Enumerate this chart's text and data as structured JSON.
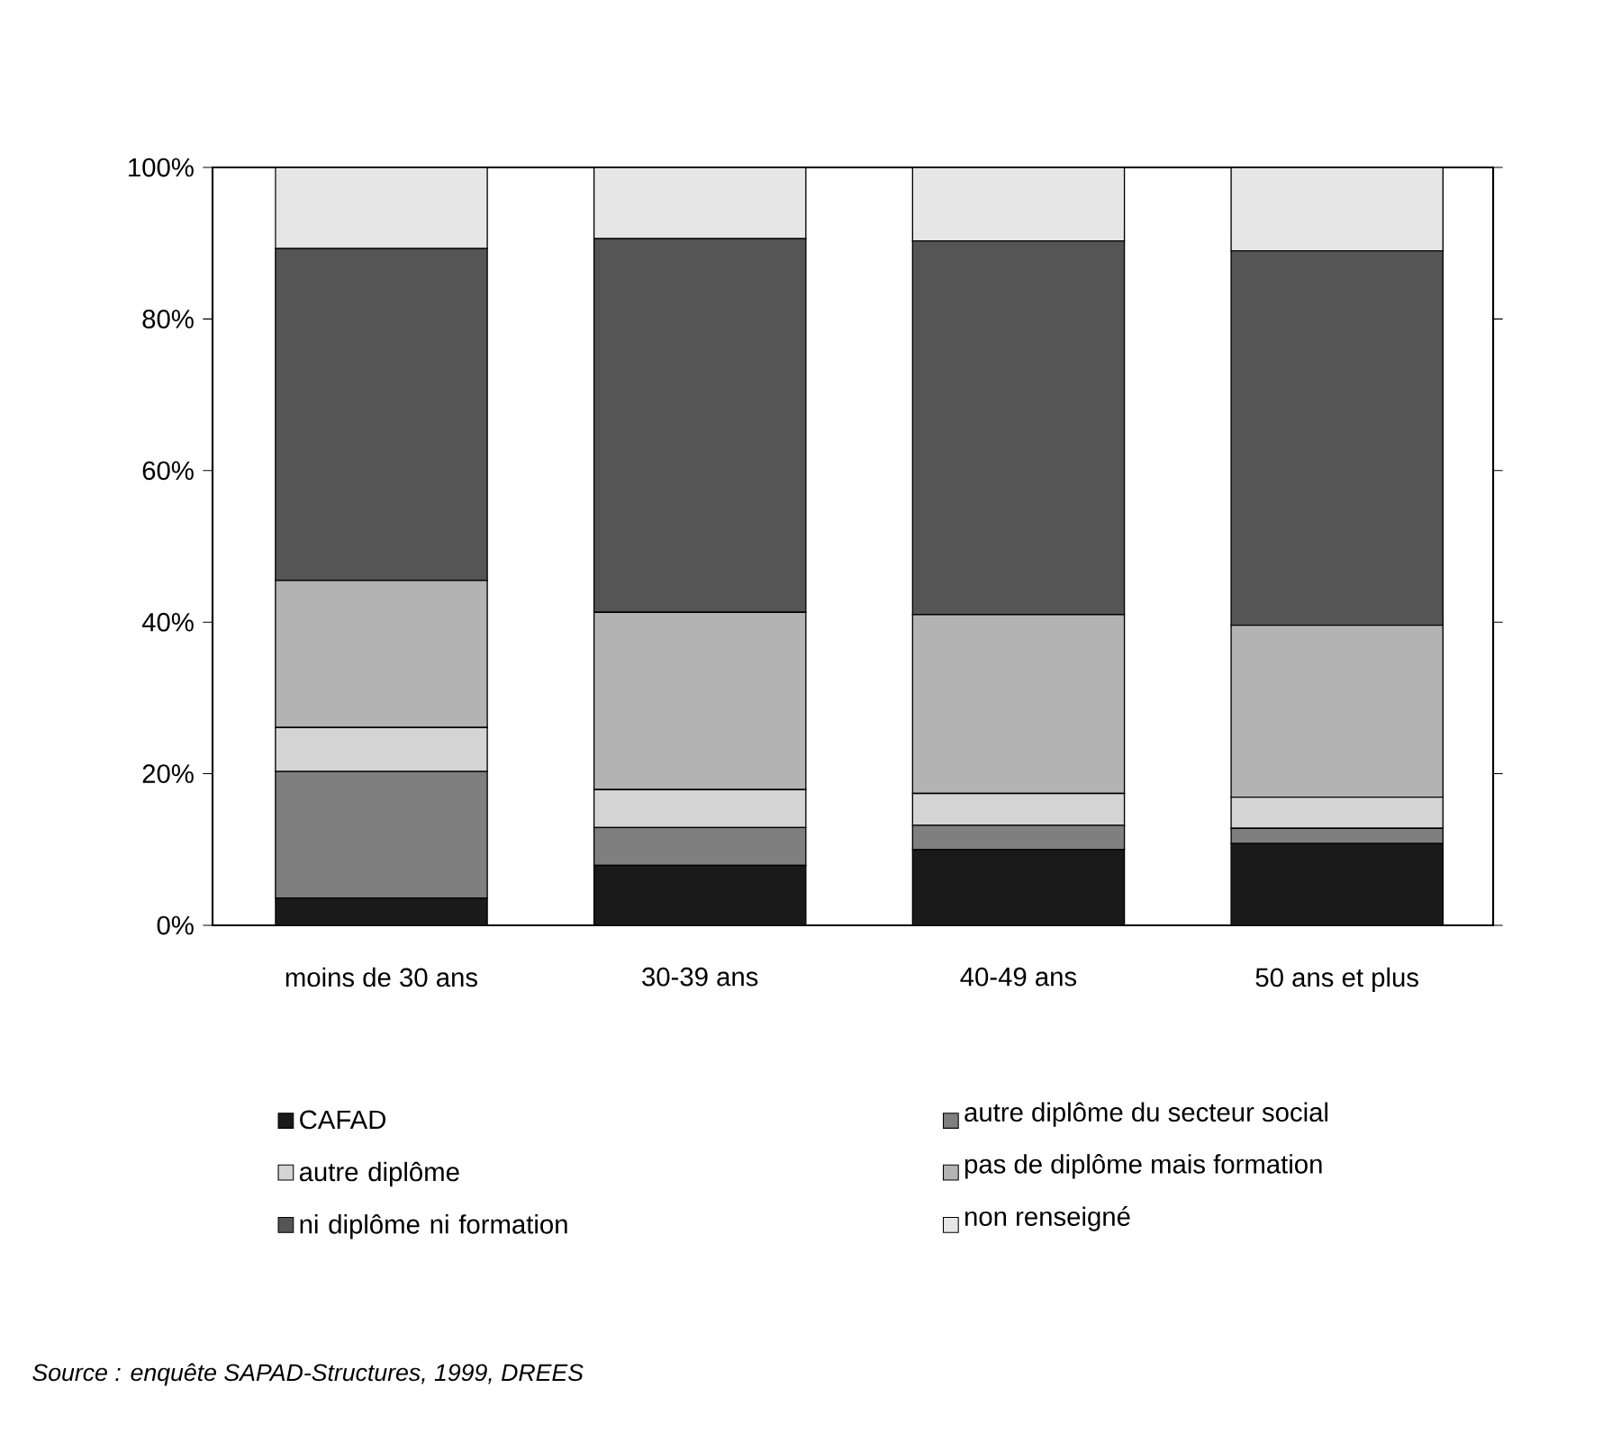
{
  "chart_data": {
    "type": "bar",
    "stacked": true,
    "categories": [
      "moins de 30 ans",
      "30-39 ans",
      "40-49 ans",
      "50 ans et plus"
    ],
    "series": [
      {
        "name": "CAFAD",
        "color": "#1a1a1a",
        "values": [
          3.6,
          7.9,
          10.0,
          10.8
        ]
      },
      {
        "name": "autre diplôme du secteur social",
        "color": "#7f7f7f",
        "values": [
          16.7,
          5.0,
          3.2,
          2.0
        ]
      },
      {
        "name": "autre diplôme",
        "color": "#d4d4d4",
        "values": [
          5.8,
          5.0,
          4.2,
          4.1
        ]
      },
      {
        "name": "pas de diplôme mais formation",
        "color": "#b3b3b3",
        "values": [
          19.4,
          23.4,
          23.6,
          22.7
        ]
      },
      {
        "name": "ni diplôme ni formation",
        "color": "#555555",
        "values": [
          43.8,
          49.3,
          49.3,
          49.4
        ]
      },
      {
        "name": "non renseigné",
        "color": "#e6e6e6",
        "values": [
          10.7,
          9.4,
          9.7,
          11.0
        ]
      }
    ],
    "ylim": [
      0,
      100
    ],
    "yticks": [
      {
        "value": 0,
        "label": "0%"
      },
      {
        "value": 20,
        "label": "20%"
      },
      {
        "value": 40,
        "label": "40%"
      },
      {
        "value": 60,
        "label": "60%"
      },
      {
        "value": 80,
        "label": "80%"
      },
      {
        "value": 100,
        "label": "100%"
      }
    ],
    "grid": false,
    "legend": "bottom",
    "annotations": [
      "Source : enquête SAPAD-Structures, 1999, DREES"
    ]
  }
}
